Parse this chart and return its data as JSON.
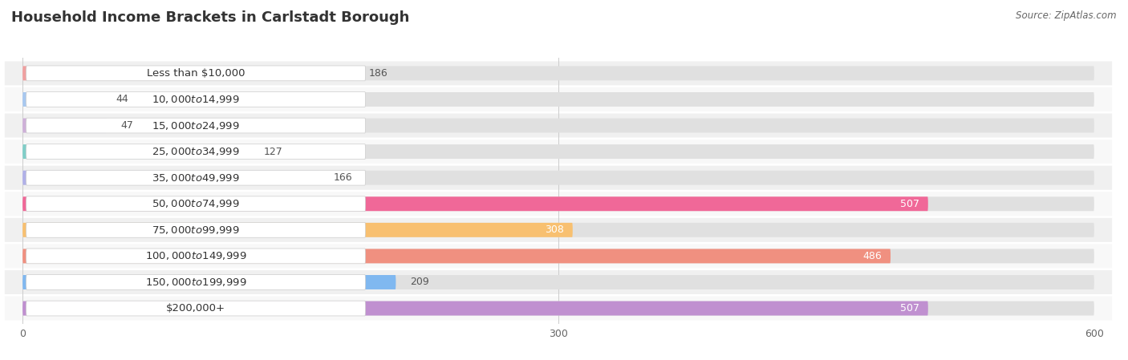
{
  "title": "Household Income Brackets in Carlstadt Borough",
  "source": "Source: ZipAtlas.com",
  "categories": [
    "Less than $10,000",
    "$10,000 to $14,999",
    "$15,000 to $24,999",
    "$25,000 to $34,999",
    "$35,000 to $49,999",
    "$50,000 to $74,999",
    "$75,000 to $99,999",
    "$100,000 to $149,999",
    "$150,000 to $199,999",
    "$200,000+"
  ],
  "values": [
    186,
    44,
    47,
    127,
    166,
    507,
    308,
    486,
    209,
    507
  ],
  "colors": [
    "#F0A0A0",
    "#A8C8F0",
    "#CEB0D8",
    "#80CEC8",
    "#B0B0E8",
    "#F06898",
    "#F8C070",
    "#F09080",
    "#80B8F0",
    "#C090D0"
  ],
  "xlim": [
    0,
    600
  ],
  "xticks": [
    0,
    300,
    600
  ],
  "background_color": "#f7f7f7",
  "bar_bg_color": "#e4e4e4",
  "row_bg_color": "#efefef",
  "title_fontsize": 13,
  "label_fontsize": 9.5,
  "value_fontsize": 9
}
